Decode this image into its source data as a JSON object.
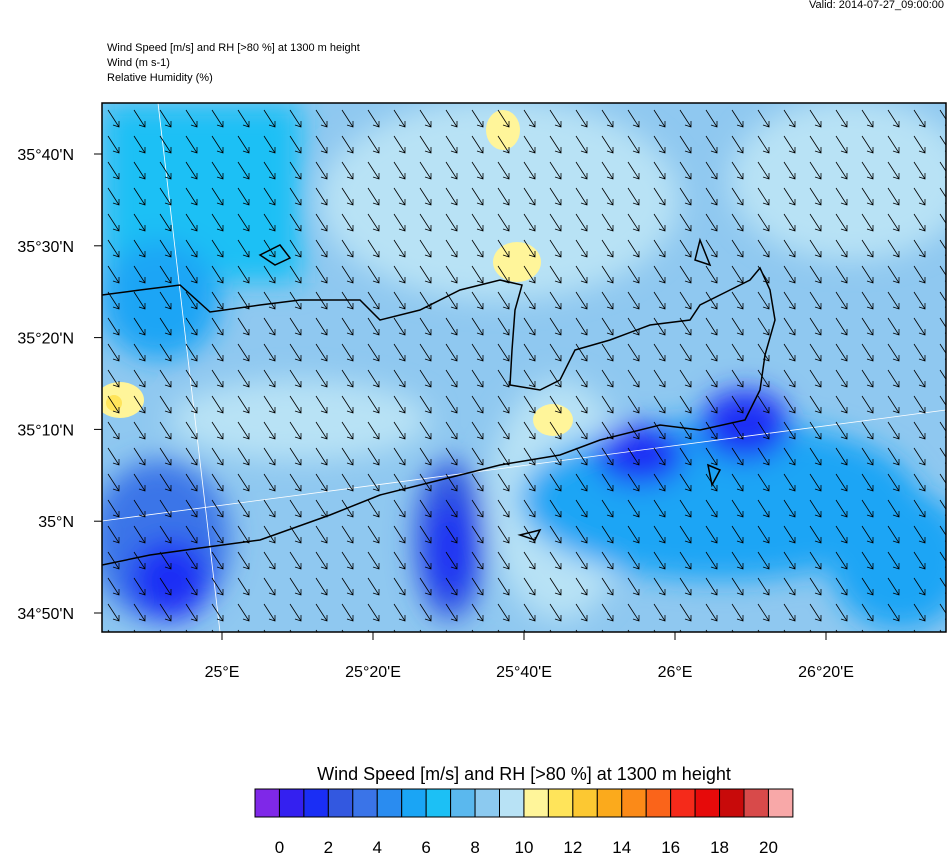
{
  "header": {
    "valid": "Valid: 2014-07-27_09:00:00",
    "lines": [
      "Wind Speed [m/s] and RH [>80 %] at 1300 m height",
      "Wind   (m s-1)",
      "Relative Humidity   (%)"
    ]
  },
  "map": {
    "lat_labels": [
      "35°40'N",
      "35°30'N",
      "35°20'N",
      "35°10'N",
      "35°N",
      "34°50'N"
    ],
    "lon_labels": [
      "25°E",
      "25°20'E",
      "25°40'E",
      "26°E",
      "26°20'E"
    ]
  },
  "colorbar": {
    "title": "Wind Speed [m/s] and RH [>80 %] at 1300 m height",
    "colors": [
      "#7f28e8",
      "#3420f0",
      "#1a2ef5",
      "#3358e0",
      "#3a74e8",
      "#2a8cf0",
      "#1aa5f5",
      "#1cc0f5",
      "#5ab8ee",
      "#8ccaf0",
      "#b8e2f5",
      "#fff59a",
      "#ffe45a",
      "#fcc832",
      "#fbaa1c",
      "#fb8a18",
      "#fa641a",
      "#f52a1a",
      "#e60a0a",
      "#c80a0a",
      "#d84a4a",
      "#f8a8a8"
    ],
    "labels": [
      0,
      2,
      4,
      6,
      8,
      10,
      12,
      14,
      16,
      18,
      20
    ]
  }
}
